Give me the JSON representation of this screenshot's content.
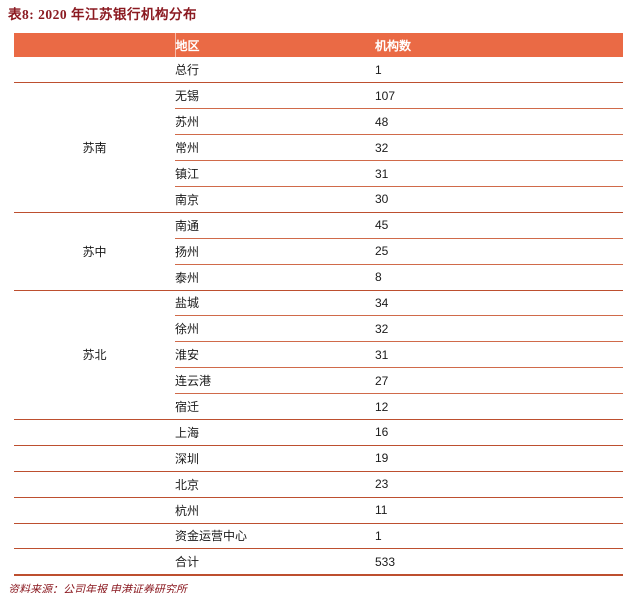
{
  "title": "表8: 2020 年江苏银行机构分布",
  "source_note": "资料来源：公司年报 申港证券研究所",
  "colors": {
    "header_bg": "#EA6A45",
    "header_text": "#FFFFFF",
    "separator_light": "#D06A4A",
    "separator_group": "#BD4F2F",
    "title_text": "#8B1A21"
  },
  "table": {
    "header": {
      "region": "地区",
      "count": "机构数"
    },
    "rows": [
      {
        "region": "总行",
        "count": "1",
        "sep": "group"
      },
      {
        "group": {
          "label": "苏南",
          "span": 5
        },
        "region": "无锡",
        "count": "107",
        "sep": "light"
      },
      {
        "region": "苏州",
        "count": "48",
        "sep": "light"
      },
      {
        "region": "常州",
        "count": "32",
        "sep": "light"
      },
      {
        "region": "镇江",
        "count": "31",
        "sep": "light"
      },
      {
        "region": "南京",
        "count": "30",
        "sep": "group"
      },
      {
        "group": {
          "label": "苏中",
          "span": 3
        },
        "region": "南通",
        "count": "45",
        "sep": "light"
      },
      {
        "region": "扬州",
        "count": "25",
        "sep": "light"
      },
      {
        "region": "泰州",
        "count": "8",
        "sep": "group"
      },
      {
        "group": {
          "label": "苏北",
          "span": 5
        },
        "region": "盐城",
        "count": "34",
        "sep": "light"
      },
      {
        "region": "徐州",
        "count": "32",
        "sep": "light"
      },
      {
        "region": "淮安",
        "count": "31",
        "sep": "light"
      },
      {
        "region": "连云港",
        "count": "27",
        "sep": "light"
      },
      {
        "region": "宿迁",
        "count": "12",
        "sep": "group"
      },
      {
        "region": "上海",
        "count": "16",
        "sep": "group"
      },
      {
        "region": "深圳",
        "count": "19",
        "sep": "group"
      },
      {
        "region": "北京",
        "count": "23",
        "sep": "group"
      },
      {
        "region": "杭州",
        "count": "11",
        "sep": "group"
      },
      {
        "region": "资金运营中心",
        "count": "1",
        "sep": "group"
      },
      {
        "region": "合计",
        "count": "533",
        "sep": "bottom"
      }
    ]
  }
}
